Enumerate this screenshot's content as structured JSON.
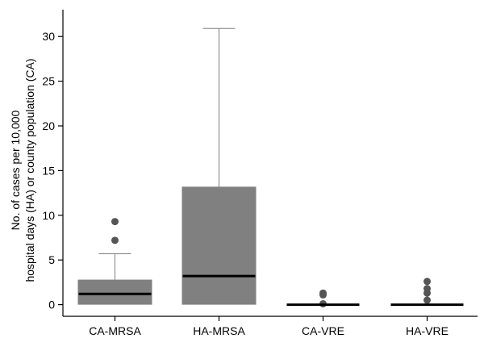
{
  "chart_data": {
    "type": "box",
    "title": "",
    "xlabel": "",
    "ylabel": [
      "No. of cases per 10,000",
      "hospital days (HA) or county population (CA)"
    ],
    "ylim": [
      -1.3,
      33
    ],
    "yticks": [
      0,
      5,
      10,
      15,
      20,
      25,
      30
    ],
    "grid": false,
    "categories": [
      "CA-MRSA",
      "HA-MRSA",
      "CA-VRE",
      "HA-VRE"
    ],
    "boxes": [
      {
        "category": "CA-MRSA",
        "whisker_low": 0,
        "q1": 0,
        "median": 1.2,
        "q3": 2.8,
        "whisker_high": 5.7,
        "outliers": [
          7.2,
          9.3
        ]
      },
      {
        "category": "HA-MRSA",
        "whisker_low": 0,
        "q1": 0,
        "median": 3.2,
        "q3": 13.2,
        "whisker_high": 30.9,
        "outliers": []
      },
      {
        "category": "CA-VRE",
        "whisker_low": 0,
        "q1": 0,
        "median": 0,
        "q3": 0,
        "whisker_high": 0,
        "outliers": [
          0.1,
          1.1,
          1.3
        ]
      },
      {
        "category": "HA-VRE",
        "whisker_low": 0,
        "q1": 0,
        "median": 0,
        "q3": 0,
        "whisker_high": 0,
        "outliers": [
          0.5,
          1.3,
          1.8,
          2.6
        ]
      }
    ],
    "colors": {
      "box": "#808080",
      "median": "#000000",
      "whisker": "#808080",
      "outlier": "#555555",
      "axis": "#000000"
    }
  }
}
